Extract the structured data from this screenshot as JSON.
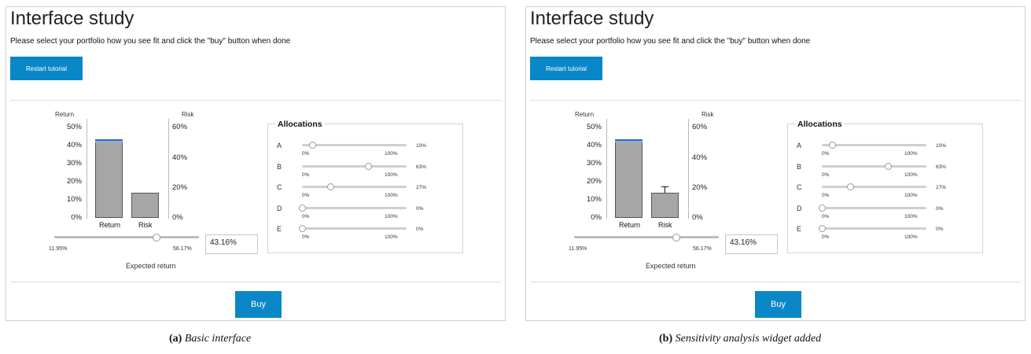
{
  "panels": [
    {
      "title": "Interface study",
      "instruction": "Please select your portfolio how you see fit and click the \"buy\" button when done",
      "restart_label": "Restart tutorial",
      "chart_data": {
        "type": "bar",
        "categories": [
          "Return",
          "Risk"
        ],
        "y_left_label": "Return",
        "y_right_label": "Risk",
        "left_ticks": [
          "50%",
          "40%",
          "30%",
          "20%",
          "10%",
          "0%"
        ],
        "right_ticks": [
          "60%",
          "40%",
          "20%",
          "0%"
        ],
        "left_ylim": [
          0,
          55
        ],
        "right_ylim": [
          0,
          66
        ],
        "return_value": 43.16,
        "risk_value": 17,
        "error_bar": false
      },
      "er_slider": {
        "min_label": "11.95%",
        "max_label": "56.17%",
        "value": 43.16,
        "min": 11.95,
        "max": 56.17
      },
      "er_value": "43.16%",
      "er_label": "Expected return",
      "alloc_title": "Allocations",
      "allocations": [
        {
          "label": "A",
          "min": "0%",
          "max": "100%",
          "value": "10%",
          "fraction": 0.1
        },
        {
          "label": "B",
          "min": "0%",
          "max": "100%",
          "value": "63%",
          "fraction": 0.63
        },
        {
          "label": "C",
          "min": "0%",
          "max": "100%",
          "value": "27%",
          "fraction": 0.27
        },
        {
          "label": "D",
          "min": "0%",
          "max": "100%",
          "value": "0%",
          "fraction": 0.0
        },
        {
          "label": "E",
          "min": "0%",
          "max": "100%",
          "value": "0%",
          "fraction": 0.0
        }
      ],
      "buy_label": "Buy",
      "caption_prefix": "(a)",
      "caption_text": "Basic interface"
    },
    {
      "title": "Interface study",
      "instruction": "Please select your portfolio how you see fit and click the \"buy\" button when done",
      "restart_label": "Restart tutorial",
      "chart_data": {
        "type": "bar",
        "categories": [
          "Return",
          "Risk"
        ],
        "y_left_label": "Return",
        "y_right_label": "Risk",
        "left_ticks": [
          "50%",
          "40%",
          "30%",
          "20%",
          "10%",
          "0%"
        ],
        "right_ticks": [
          "60%",
          "40%",
          "20%",
          "0%"
        ],
        "left_ylim": [
          0,
          55
        ],
        "right_ylim": [
          0,
          66
        ],
        "return_value": 43.16,
        "risk_value": 17,
        "error_bar": true,
        "risk_upper": 21
      },
      "er_slider": {
        "min_label": "11.95%",
        "max_label": "56.17%",
        "value": 43.16,
        "min": 11.95,
        "max": 56.17
      },
      "er_value": "43.16%",
      "er_label": "Expected return",
      "alloc_title": "Allocations",
      "allocations": [
        {
          "label": "A",
          "min": "0%",
          "max": "100%",
          "value": "10%",
          "fraction": 0.1
        },
        {
          "label": "B",
          "min": "0%",
          "max": "100%",
          "value": "63%",
          "fraction": 0.63
        },
        {
          "label": "C",
          "min": "0%",
          "max": "100%",
          "value": "27%",
          "fraction": 0.27
        },
        {
          "label": "D",
          "min": "0%",
          "max": "100%",
          "value": "0%",
          "fraction": 0.0
        },
        {
          "label": "E",
          "min": "0%",
          "max": "100%",
          "value": "0%",
          "fraction": 0.0
        }
      ],
      "buy_label": "Buy",
      "caption_prefix": "(b)",
      "caption_text": "Sensitivity analysis widget added"
    }
  ]
}
